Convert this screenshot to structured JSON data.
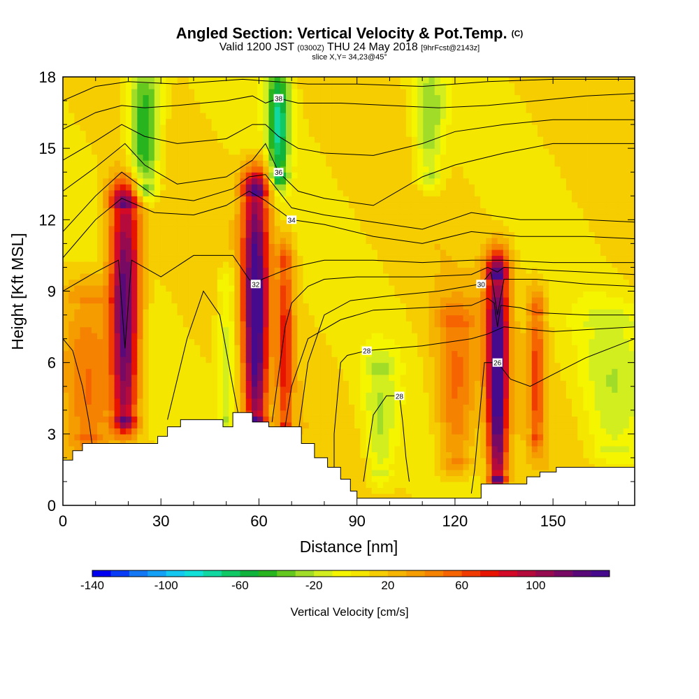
{
  "title": "Angled Section: Vertical Velocity & Pot.Temp.",
  "title_unit": "(C)",
  "subtitle_valid": "Valid 1200 JST",
  "subtitle_utc": "(0300Z)",
  "subtitle_date": "THU 24 May 2018",
  "subtitle_fcst": "[9hrFcst@2143z]",
  "slice_text": "slice X,Y= 34,23@45°",
  "chart_data": {
    "type": "heatmap",
    "xlabel": "Distance [nm]",
    "ylabel": "Height [Kft MSL]",
    "xlim": [
      0,
      175
    ],
    "ylim": [
      0,
      18
    ],
    "x_ticks": [
      0,
      30,
      60,
      90,
      120,
      150
    ],
    "x_ticklabels": [
      "0",
      "30",
      "60",
      "90",
      "120",
      "150"
    ],
    "y_ticks": [
      0,
      3,
      6,
      9,
      12,
      15,
      18
    ],
    "y_ticklabels": [
      "0",
      "3",
      "6",
      "9",
      "12",
      "15",
      "18"
    ],
    "colorbar": {
      "title": "Vertical Velocity [cm/s]",
      "min": -140,
      "max": 140,
      "step": 10,
      "tick_values": [
        -140,
        -100,
        -60,
        -20,
        20,
        60,
        100
      ],
      "tick_labels": [
        "-140",
        "-100",
        "-60",
        "-20",
        "20",
        "60",
        "100"
      ],
      "colors": [
        "#0000f0",
        "#0a3cf5",
        "#1478f5",
        "#14a0f5",
        "#14c8f0",
        "#10e0d8",
        "#10d8a0",
        "#10c864",
        "#10b43c",
        "#28b41e",
        "#64c81e",
        "#a0dc28",
        "#d2ee1e",
        "#f5f500",
        "#f5e600",
        "#f5cd00",
        "#f5b400",
        "#f59c00",
        "#f58200",
        "#f56400",
        "#f03c00",
        "#e61400",
        "#d20a28",
        "#b40a3c",
        "#960a50",
        "#780a64",
        "#5a0a78",
        "#460a8c"
      ]
    },
    "vertical_velocity_features": [
      {
        "x": 19,
        "y_bottom": 3.8,
        "y_top": 12.5,
        "peak": 120,
        "halfwidth": 4.5
      },
      {
        "x": 59,
        "y_bottom": 3.8,
        "y_top": 13.0,
        "peak": 130,
        "halfwidth": 3.8
      },
      {
        "x": 68,
        "y_bottom": 3.5,
        "y_top": 10.0,
        "peak": 60,
        "halfwidth": 2.5
      },
      {
        "x": 133,
        "y_bottom": 1.3,
        "y_top": 9.5,
        "peak": 130,
        "halfwidth": 3.2
      },
      {
        "x": 145,
        "y_bottom": 3.0,
        "y_top": 8.0,
        "peak": 50,
        "halfwidth": 2.5
      },
      {
        "x": 120,
        "y_bottom": 2.0,
        "y_top": 7.5,
        "peak": 40,
        "halfwidth": 6.0
      },
      {
        "x": 8,
        "y_bottom": 3.0,
        "y_top": 8.5,
        "peak": 35,
        "halfwidth": 7.0
      },
      {
        "x": 25,
        "y_bottom": 13.5,
        "y_top": 18,
        "peak": -70,
        "halfwidth": 5.0
      },
      {
        "x": 66,
        "y_bottom": 14.0,
        "y_top": 18,
        "peak": -80,
        "halfwidth": 3.5
      },
      {
        "x": 50,
        "y_bottom": 3.8,
        "y_top": 9.0,
        "peak": -30,
        "halfwidth": 3.0
      },
      {
        "x": 97,
        "y_bottom": 1.5,
        "y_top": 5.5,
        "peak": -30,
        "halfwidth": 5.0
      },
      {
        "x": 112,
        "y_bottom": 14.0,
        "y_top": 18,
        "peak": -40,
        "halfwidth": 5.0
      },
      {
        "x": 168,
        "y_bottom": 2.5,
        "y_top": 7.5,
        "peak": -25,
        "halfwidth": 10.0
      }
    ],
    "pot_temp_contours": [
      {
        "label": "26",
        "x": [
          125,
          126,
          127,
          128,
          129,
          133,
          137,
          143,
          150,
          160,
          175
        ],
        "y": [
          0.5,
          1.5,
          3.0,
          4.5,
          6.0,
          6.0,
          5.3,
          5.0,
          5.5,
          6.2,
          7.0
        ]
      },
      {
        "label": "28",
        "x": [
          83,
          83,
          83,
          84,
          85,
          87,
          93,
          110,
          125,
          130,
          135,
          150,
          175
        ],
        "y": [
          0.9,
          1.7,
          3.0,
          4.5,
          6.0,
          6.3,
          6.5,
          6.7,
          7.0,
          7.2,
          7.5,
          7.3,
          7.5
        ]
      },
      {
        "label": "28",
        "x": [
          92,
          95,
          99,
          103,
          104,
          105,
          106
        ],
        "y": [
          1.0,
          3.8,
          4.6,
          4.6,
          3.5,
          2.0,
          1.0
        ]
      },
      {
        "label": "30",
        "x": [
          72,
          75,
          80,
          88,
          100,
          115,
          128,
          131,
          133,
          135,
          145,
          160,
          175
        ],
        "y": [
          3.0,
          6.0,
          8.0,
          8.6,
          8.8,
          9.0,
          9.3,
          9.8,
          8.0,
          9.5,
          9.5,
          9.3,
          9.2
        ]
      },
      {
        "label": "32",
        "x": [
          0,
          10,
          17,
          19,
          21,
          30,
          40,
          52,
          57,
          59,
          61,
          70,
          80,
          95,
          110,
          125,
          135,
          150,
          175
        ],
        "y": [
          9.0,
          9.8,
          10.3,
          6.6,
          10.3,
          9.6,
          10.5,
          10.5,
          9.5,
          9.3,
          9.5,
          10.0,
          10.3,
          10.3,
          10.2,
          10.3,
          10.3,
          10.2,
          10.2
        ]
      },
      {
        "label": "34",
        "x": [
          0,
          10,
          18,
          28,
          40,
          50,
          57,
          62,
          70,
          80,
          95,
          110,
          125,
          140,
          160,
          175
        ],
        "y": [
          10.4,
          12.0,
          12.9,
          12.3,
          12.2,
          12.6,
          13.2,
          12.8,
          12.0,
          11.8,
          11.3,
          11.0,
          11.5,
          11.3,
          11.3,
          11.2
        ]
      },
      {
        "label": "36",
        "x": [
          0,
          10,
          19,
          25,
          35,
          50,
          58,
          62,
          66,
          72,
          80,
          95,
          110,
          120,
          135,
          150,
          175
        ],
        "y": [
          13.2,
          14.2,
          15.2,
          14.3,
          13.5,
          13.8,
          14.5,
          15.2,
          14.0,
          13.2,
          12.9,
          12.6,
          13.8,
          14.3,
          14.8,
          15.2,
          15.2
        ]
      },
      {
        "label": "38",
        "x": [
          0,
          10,
          18,
          25,
          35,
          50,
          58,
          62,
          66,
          72,
          85,
          100,
          115,
          130,
          145,
          160,
          175
        ],
        "y": [
          15.8,
          16.5,
          16.8,
          16.7,
          16.8,
          17.0,
          17.2,
          16.9,
          17.1,
          16.9,
          16.9,
          16.8,
          16.7,
          16.8,
          17.0,
          17.2,
          17.3
        ]
      }
    ],
    "extra_contours": [
      {
        "x": [
          0,
          10,
          18,
          28,
          40,
          52,
          57,
          62,
          70,
          80,
          95,
          110,
          125,
          140,
          160,
          175
        ],
        "y": [
          11.5,
          13.0,
          14.0,
          13.0,
          12.8,
          13.3,
          13.8,
          13.9,
          12.5,
          12.2,
          11.9,
          11.6,
          12.3,
          12.0,
          12.0,
          11.9
        ]
      },
      {
        "x": [
          0,
          10,
          18,
          25,
          35,
          50,
          58,
          62,
          66,
          72,
          80,
          95,
          110,
          120,
          135,
          150,
          175
        ],
        "y": [
          14.5,
          15.3,
          16.0,
          15.5,
          15.2,
          15.4,
          16.0,
          16.0,
          15.5,
          15.0,
          14.8,
          14.7,
          15.2,
          15.7,
          16.0,
          16.2,
          16.2
        ]
      },
      {
        "x": [
          0,
          10,
          20,
          35,
          55,
          65,
          75,
          90,
          110,
          130,
          150,
          175
        ],
        "y": [
          17.0,
          17.6,
          17.8,
          17.7,
          17.9,
          17.8,
          17.7,
          17.7,
          17.6,
          17.8,
          17.9,
          17.9
        ]
      },
      {
        "x": [
          32,
          38,
          43,
          48,
          52,
          54
        ],
        "y": [
          3.6,
          7.0,
          9.0,
          8.0,
          5.0,
          3.6
        ]
      },
      {
        "x": [
          0,
          3,
          6,
          8,
          9
        ],
        "y": [
          7.0,
          6.5,
          5.0,
          3.5,
          2.5
        ]
      },
      {
        "x": [
          68,
          70,
          75,
          85,
          95,
          110,
          125,
          130,
          132,
          133,
          134,
          140,
          145,
          160,
          175
        ],
        "y": [
          3.3,
          5.0,
          7.0,
          7.8,
          8.2,
          8.3,
          8.4,
          8.7,
          8.5,
          7.5,
          8.4,
          8.3,
          8.1,
          8.0,
          8.0
        ]
      },
      {
        "x": [
          64,
          66,
          68,
          70,
          75,
          80,
          90,
          100,
          110,
          125,
          130,
          133,
          135,
          145,
          160,
          175
        ],
        "y": [
          3.5,
          5.5,
          7.5,
          8.5,
          9.2,
          9.5,
          9.6,
          9.6,
          9.6,
          9.7,
          10.0,
          9.8,
          10.0,
          9.9,
          9.8,
          9.7
        ]
      }
    ],
    "terrain": {
      "x": [
        0,
        3,
        3,
        6,
        6,
        9,
        9,
        13,
        13,
        29,
        29,
        32,
        32,
        36,
        36,
        49,
        49,
        52,
        52,
        58,
        58,
        63,
        63,
        73,
        73,
        77,
        77,
        81,
        81,
        85,
        85,
        88,
        88,
        90,
        90,
        93,
        93,
        128,
        128,
        142,
        142,
        146,
        146,
        151,
        151,
        157,
        157,
        175
      ],
      "y": [
        1.9,
        1.9,
        2.3,
        2.3,
        2.6,
        2.6,
        2.6,
        2.6,
        2.6,
        2.6,
        2.9,
        2.9,
        3.3,
        3.3,
        3.6,
        3.6,
        3.3,
        3.3,
        3.9,
        3.9,
        3.5,
        3.5,
        3.3,
        3.3,
        2.6,
        2.6,
        2.0,
        2.0,
        1.6,
        1.6,
        1.1,
        1.1,
        0.6,
        0.6,
        0.3,
        0.3,
        0.3,
        0.3,
        0.9,
        0.9,
        1.2,
        1.2,
        1.4,
        1.4,
        1.6,
        1.6,
        1.6,
        1.6
      ]
    }
  }
}
